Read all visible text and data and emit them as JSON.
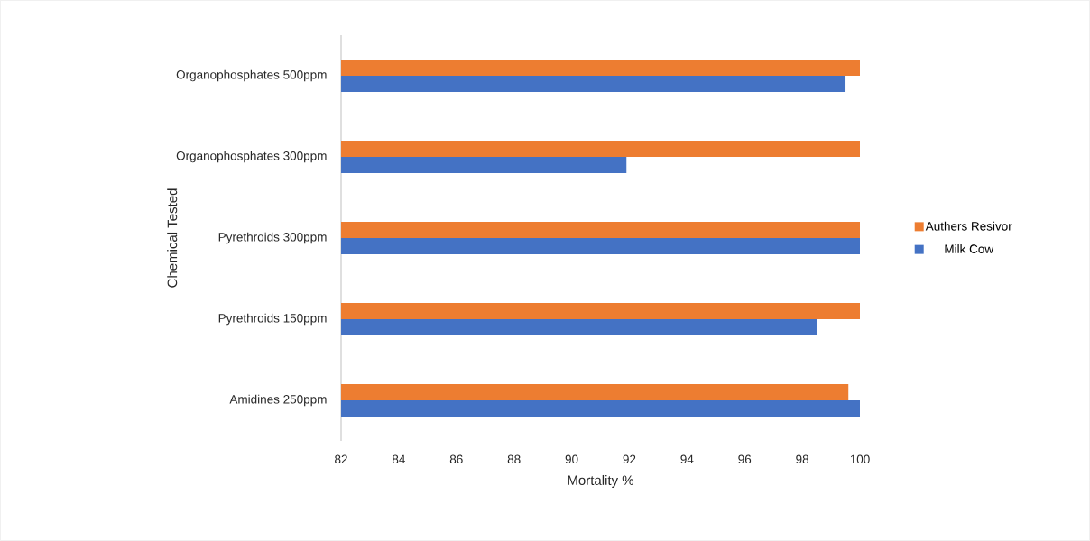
{
  "chart_data": {
    "type": "bar",
    "orientation": "horizontal",
    "xlabel": "Mortality %",
    "ylabel": "Chemical Tested",
    "categories": [
      "Organophosphates 500ppm",
      "Organophosphates 300ppm",
      "Pyrethroids 300ppm",
      "Pyrethroids 150ppm",
      "Amidines 250ppm"
    ],
    "series": [
      {
        "name": "Milk Cow",
        "color": "#4472c4",
        "values": [
          99.5,
          91.9,
          100,
          98.5,
          100
        ]
      },
      {
        "name": "Authers Resivor",
        "color": "#ed7d31",
        "values": [
          100,
          100,
          100,
          100,
          99.6
        ]
      }
    ],
    "xlim": [
      82,
      100
    ],
    "xticks": [
      82,
      84,
      86,
      88,
      90,
      92,
      94,
      96,
      98,
      100
    ],
    "grid": false,
    "legend": "right"
  }
}
